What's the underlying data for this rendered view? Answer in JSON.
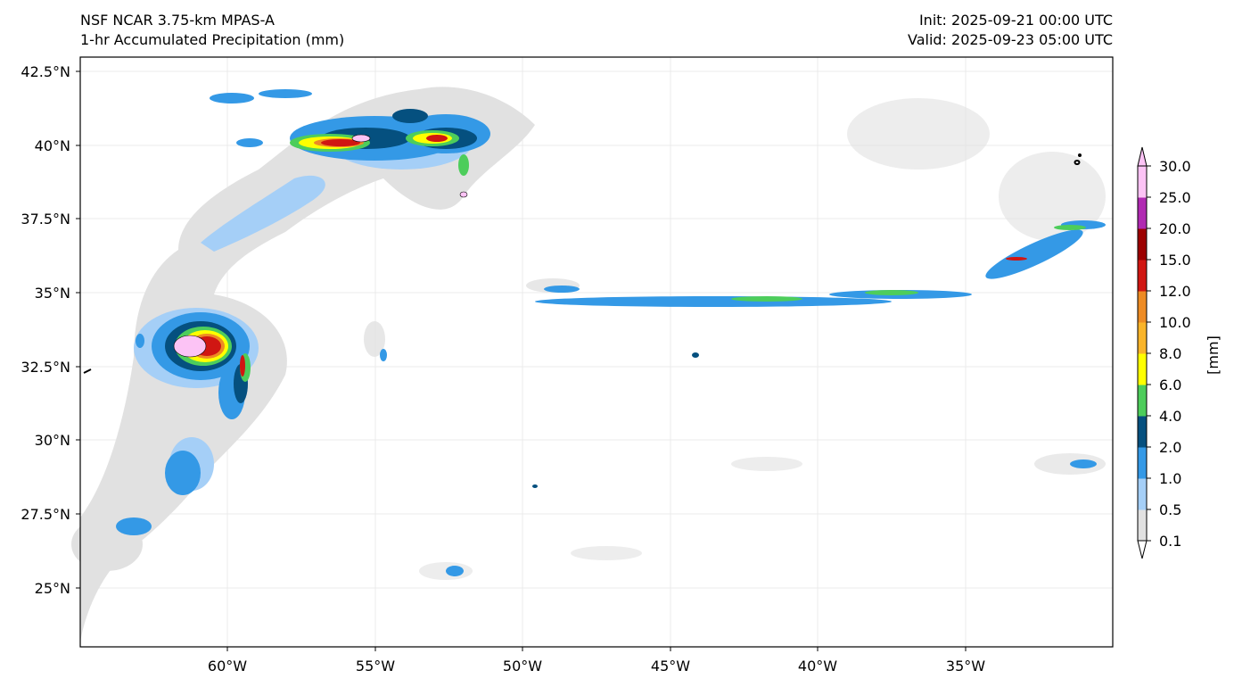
{
  "header": {
    "model": "NSF NCAR 3.75-km MPAS-A",
    "field": "1-hr Accumulated Precipitation (mm)",
    "init": "Init: 2025-09-21 00:00 UTC",
    "valid": "Valid: 2025-09-23 05:00 UTC"
  },
  "map": {
    "lat_labels": [
      "42.5°N",
      "40°N",
      "37.5°N",
      "35°N",
      "32.5°N",
      "30°N",
      "27.5°N",
      "25°N"
    ],
    "lon_labels": [
      "60°W",
      "55°W",
      "50°W",
      "45°W",
      "40°W",
      "35°W"
    ],
    "extent": {
      "lon_min": -65,
      "lon_max": -30,
      "lat_min": 23,
      "lat_max": 43
    }
  },
  "colorbar": {
    "label": "[mm]",
    "ticks": [
      "0.1",
      "0.5",
      "1.0",
      "2.0",
      "4.0",
      "6.0",
      "8.0",
      "10.0",
      "12.0",
      "15.0",
      "20.0",
      "25.0",
      "30.0"
    ],
    "colors": [
      "#e1e1e1",
      "#a5cff7",
      "#3499e6",
      "#05507f",
      "#4dcd5b",
      "#ffff00",
      "#f9b42a",
      "#ed8b24",
      "#d01612",
      "#9c0000",
      "#b02ab2",
      "#fcc3f5"
    ]
  }
}
